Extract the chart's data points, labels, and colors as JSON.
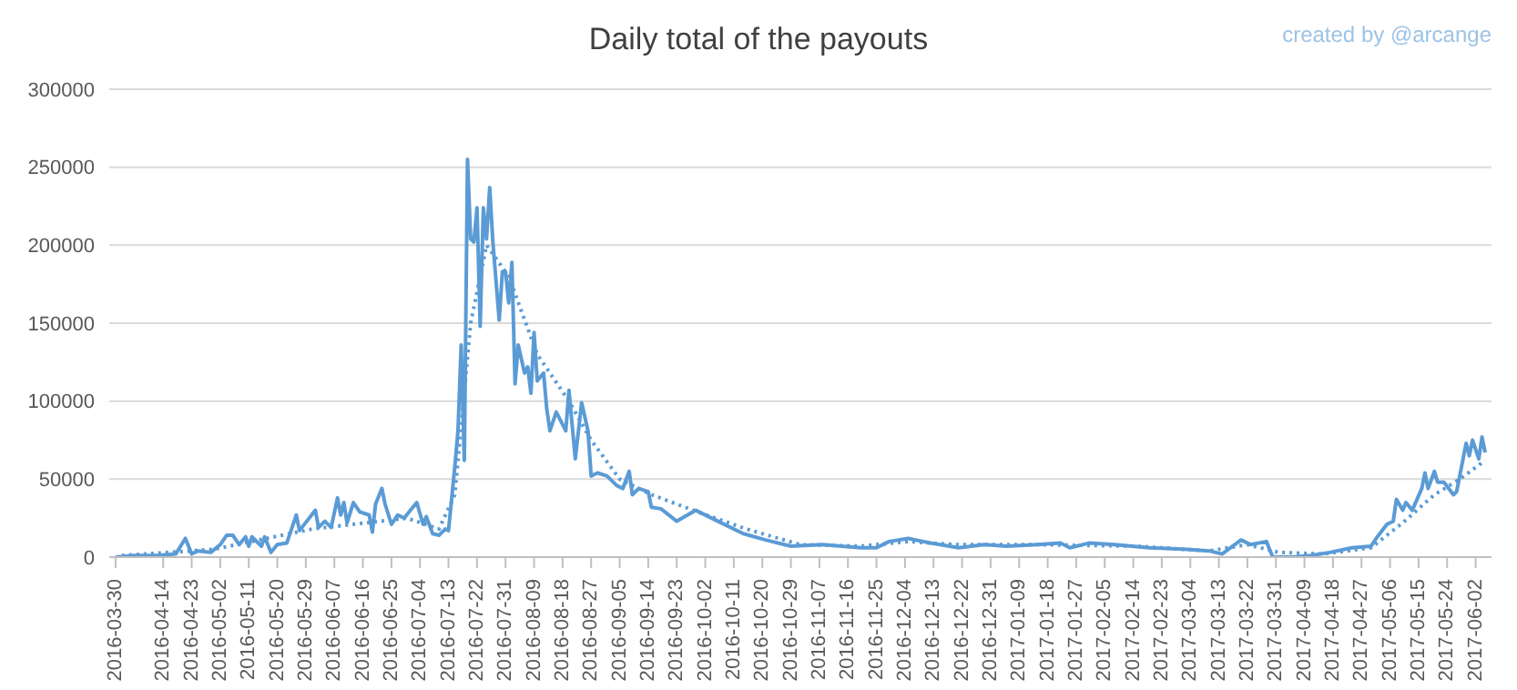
{
  "chart_data": {
    "type": "line",
    "title": "Daily total of the payouts",
    "annotations": [
      "created by @arcange"
    ],
    "xlim": [
      "2016-03-28",
      "2017-06-07"
    ],
    "xticks": [
      "2016-03-30",
      "2016-04-14",
      "2016-04-23",
      "2016-05-02",
      "2016-05-11",
      "2016-05-20",
      "2016-05-29",
      "2016-06-07",
      "2016-06-16",
      "2016-06-25",
      "2016-07-04",
      "2016-07-13",
      "2016-07-22",
      "2016-07-31",
      "2016-08-09",
      "2016-08-18",
      "2016-08-27",
      "2016-09-05",
      "2016-09-14",
      "2016-09-23",
      "2016-10-02",
      "2016-10-11",
      "2016-10-20",
      "2016-10-29",
      "2016-11-07",
      "2016-11-16",
      "2016-11-25",
      "2016-12-04",
      "2016-12-13",
      "2016-12-22",
      "2016-12-31",
      "2017-01-09",
      "2017-01-18",
      "2017-01-27",
      "2017-02-05",
      "2017-02-14",
      "2017-02-23",
      "2017-03-04",
      "2017-03-13",
      "2017-03-22",
      "2017-03-31",
      "2017-04-09",
      "2017-04-18",
      "2017-04-27",
      "2017-05-06",
      "2017-05-15",
      "2017-05-24",
      "2017-06-02"
    ],
    "ylim": [
      0,
      300000
    ],
    "yticks": [
      0,
      50000,
      100000,
      150000,
      200000,
      250000,
      300000
    ],
    "grid": "y",
    "marker": "none",
    "series": [
      {
        "color": "#5b9bd5",
        "line_style": "solid",
        "x": [
          "2016-03-30",
          "2016-04-05",
          "2016-04-12",
          "2016-04-18",
          "2016-04-21",
          "2016-04-23",
          "2016-04-25",
          "2016-04-29",
          "2016-05-02",
          "2016-05-04",
          "2016-05-06",
          "2016-05-08",
          "2016-05-10",
          "2016-05-11",
          "2016-05-12",
          "2016-05-15",
          "2016-05-16",
          "2016-05-18",
          "2016-05-20",
          "2016-05-23",
          "2016-05-26",
          "2016-05-27",
          "2016-06-01",
          "2016-06-02",
          "2016-06-04",
          "2016-06-06",
          "2016-06-08",
          "2016-06-09",
          "2016-06-10",
          "2016-06-11",
          "2016-06-13",
          "2016-06-15",
          "2016-06-18",
          "2016-06-19",
          "2016-06-20",
          "2016-06-22",
          "2016-06-23",
          "2016-06-25",
          "2016-06-27",
          "2016-06-29",
          "2016-07-01",
          "2016-07-03",
          "2016-07-05",
          "2016-07-06",
          "2016-07-08",
          "2016-07-10",
          "2016-07-12",
          "2016-07-13",
          "2016-07-15",
          "2016-07-16",
          "2016-07-17",
          "2016-07-18",
          "2016-07-19",
          "2016-07-20",
          "2016-07-21",
          "2016-07-22",
          "2016-07-23",
          "2016-07-24",
          "2016-07-25",
          "2016-07-26",
          "2016-07-27",
          "2016-07-29",
          "2016-07-30",
          "2016-07-31",
          "2016-08-01",
          "2016-08-02",
          "2016-08-03",
          "2016-08-04",
          "2016-08-06",
          "2016-08-07",
          "2016-08-08",
          "2016-08-09",
          "2016-08-10",
          "2016-08-12",
          "2016-08-13",
          "2016-08-14",
          "2016-08-16",
          "2016-08-18",
          "2016-08-19",
          "2016-08-20",
          "2016-08-22",
          "2016-08-24",
          "2016-08-26",
          "2016-08-27",
          "2016-08-29",
          "2016-09-01",
          "2016-09-04",
          "2016-09-06",
          "2016-09-08",
          "2016-09-09",
          "2016-09-11",
          "2016-09-14",
          "2016-09-15",
          "2016-09-18",
          "2016-09-23",
          "2016-09-29",
          "2016-10-06",
          "2016-10-14",
          "2016-10-21",
          "2016-10-29",
          "2016-11-08",
          "2016-11-20",
          "2016-11-25",
          "2016-11-29",
          "2016-12-05",
          "2016-12-12",
          "2016-12-21",
          "2016-12-29",
          "2017-01-05",
          "2017-01-15",
          "2017-01-22",
          "2017-01-25",
          "2017-01-31",
          "2017-02-08",
          "2017-02-19",
          "2017-03-03",
          "2017-03-10",
          "2017-03-14",
          "2017-03-20",
          "2017-03-23",
          "2017-03-28",
          "2017-03-30",
          "2017-04-05",
          "2017-04-11",
          "2017-04-17",
          "2017-04-24",
          "2017-04-30",
          "2017-05-02",
          "2017-05-05",
          "2017-05-07",
          "2017-05-08",
          "2017-05-10",
          "2017-05-11",
          "2017-05-13",
          "2017-05-16",
          "2017-05-17",
          "2017-05-18",
          "2017-05-20",
          "2017-05-21",
          "2017-05-23",
          "2017-05-26",
          "2017-05-27",
          "2017-05-30",
          "2017-05-31",
          "2017-06-01",
          "2017-06-03",
          "2017-06-04",
          "2017-06-05"
        ],
        "values": [
          0,
          1000,
          1000,
          2000,
          12000,
          2000,
          4000,
          3000,
          8000,
          14000,
          14000,
          8000,
          13000,
          7000,
          13000,
          7000,
          13000,
          3000,
          8000,
          9000,
          27000,
          17000,
          30000,
          19000,
          23000,
          19000,
          38000,
          27000,
          35000,
          22000,
          35000,
          29000,
          27000,
          16000,
          34000,
          44000,
          34000,
          21000,
          27000,
          25000,
          30000,
          35000,
          21000,
          26000,
          15000,
          14000,
          18000,
          17000,
          58000,
          81000,
          136000,
          62000,
          255000,
          204000,
          202000,
          224000,
          148000,
          224000,
          204000,
          237000,
          202000,
          152000,
          183000,
          183000,
          163000,
          189000,
          111000,
          136000,
          118000,
          122000,
          105000,
          144000,
          113000,
          118000,
          95000,
          81000,
          93000,
          85000,
          81000,
          107000,
          63000,
          99000,
          81000,
          52000,
          54000,
          52000,
          46000,
          44000,
          55000,
          40000,
          44000,
          42000,
          32000,
          31000,
          23000,
          30000,
          23000,
          15000,
          11000,
          7000,
          8000,
          6000,
          6000,
          10000,
          12000,
          9000,
          6000,
          8000,
          7000,
          8000,
          9000,
          6000,
          9000,
          8000,
          6000,
          5000,
          4000,
          2000,
          11000,
          8000,
          10000,
          0,
          0,
          1000,
          3000,
          6000,
          7000,
          13000,
          21000,
          23000,
          37000,
          30000,
          35000,
          30000,
          44000,
          54000,
          44000,
          55000,
          48000,
          48000,
          40000,
          42000,
          73000,
          65000,
          75000,
          63000,
          77000,
          67000
        ]
      },
      {
        "color": "#5b9bd5",
        "line_style": "dotted",
        "x": [
          "2016-04-01",
          "2016-04-30",
          "2016-05-31",
          "2016-06-30",
          "2016-07-10",
          "2016-07-15",
          "2016-07-20",
          "2016-07-25",
          "2016-08-01",
          "2016-08-10",
          "2016-08-20",
          "2016-08-27",
          "2016-09-05",
          "2016-09-15",
          "2016-10-01",
          "2016-10-15",
          "2016-11-01",
          "2016-11-20",
          "2016-12-05",
          "2016-12-20",
          "2017-01-15",
          "2017-02-15",
          "2017-03-10",
          "2017-03-22",
          "2017-04-01",
          "2017-04-15",
          "2017-04-30",
          "2017-05-10",
          "2017-05-20",
          "2017-05-28",
          "2017-06-05"
        ],
        "values": [
          1000,
          5000,
          18000,
          25000,
          18000,
          40000,
          150000,
          200000,
          180000,
          130000,
          100000,
          75000,
          50000,
          40000,
          28000,
          18000,
          8000,
          7000,
          10000,
          8000,
          8000,
          7000,
          4000,
          8000,
          3000,
          2000,
          6000,
          22000,
          40000,
          50000,
          62000
        ]
      }
    ]
  }
}
